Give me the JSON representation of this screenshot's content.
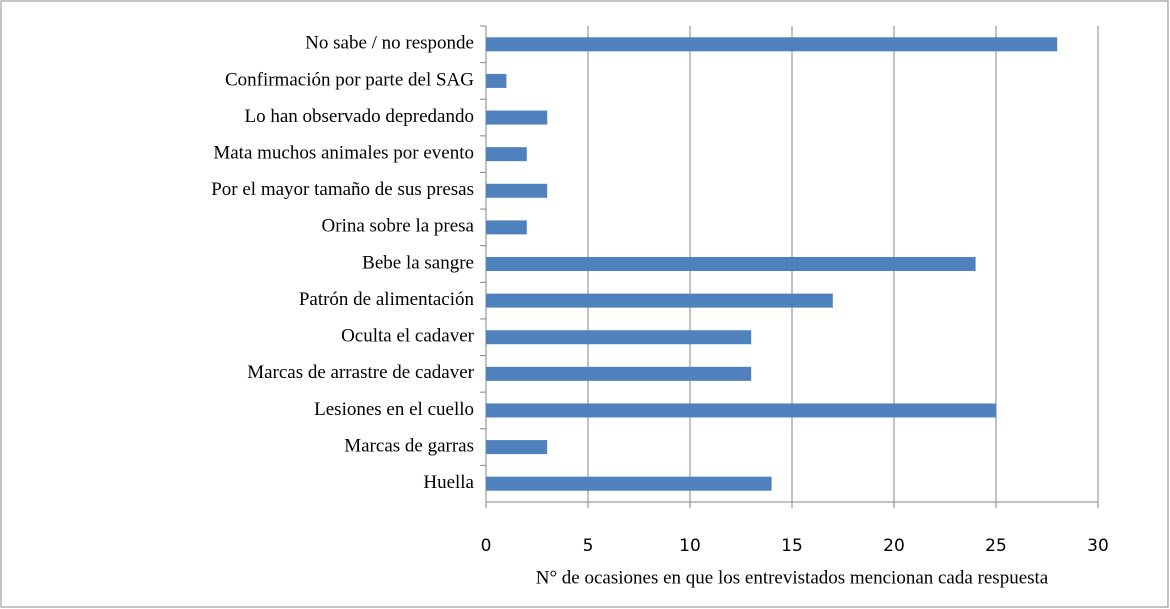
{
  "chart_data": {
    "type": "bar",
    "orientation": "horizontal",
    "x_label": "N° de ocasiones en que los entrevistados mencionan cada respuesta",
    "categories": [
      "No sabe / no responde",
      "Confirmación por parte del SAG",
      "Lo han observado depredando",
      "Mata muchos animales por evento",
      "Por el mayor tamaño de sus presas",
      "Orina sobre la presa",
      "Bebe la sangre",
      "Patrón de alimentación",
      "Oculta el cadaver",
      "Marcas de arrastre de cadaver",
      "Lesiones en el cuello",
      "Marcas de garras",
      "Huella"
    ],
    "values": [
      28,
      1,
      3,
      2,
      3,
      2,
      24,
      17,
      13,
      13,
      25,
      3,
      14
    ],
    "color": "#4f81bd",
    "xlim": [
      0,
      30
    ],
    "xticks": [
      0,
      5,
      10,
      15,
      20,
      25,
      30
    ],
    "grid": true
  }
}
